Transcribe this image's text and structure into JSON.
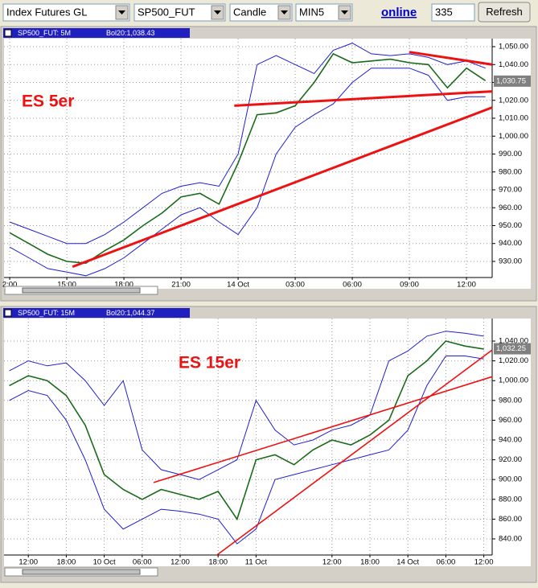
{
  "toolbar": {
    "selects": [
      "Index Futures GL",
      "SP500_FUT",
      "Candle",
      "MIN5"
    ],
    "status": "online",
    "count": "335",
    "button": "Refresh"
  },
  "chart_data": [
    {
      "type": "line",
      "title": "SP500_FUT: 5M",
      "subtitle": "Bol20:1,038.43",
      "annotation": "ES 5er",
      "last_price": {
        "value": 1030.75,
        "label": "1,030.75"
      },
      "x": [
        0,
        1,
        2,
        3,
        4,
        5,
        6,
        7,
        8,
        9,
        10,
        11,
        12,
        13,
        14,
        15,
        16,
        17,
        18,
        19,
        20,
        21,
        22,
        23,
        24,
        25
      ],
      "xlim": [
        -0.3,
        25.35
      ],
      "xticks": [
        {
          "value": 0,
          "label": "2:00"
        },
        {
          "value": 3,
          "label": "15:00"
        },
        {
          "value": 6,
          "label": "18:00"
        },
        {
          "value": 9,
          "label": "21:00"
        },
        {
          "value": 12,
          "label": "14 Oct"
        },
        {
          "value": 15,
          "label": "03:00"
        },
        {
          "value": 18,
          "label": "06:00"
        },
        {
          "value": 21,
          "label": "09:00"
        },
        {
          "value": 24,
          "label": "12:00"
        }
      ],
      "ylim": [
        921,
        1054.5
      ],
      "yticks": [
        {
          "value": 1050,
          "label": "1,050.00"
        },
        {
          "value": 1040,
          "label": "1,040.00"
        },
        {
          "value": 1030,
          "label": "1,030.00"
        },
        {
          "value": 1020,
          "label": "1,020.00"
        },
        {
          "value": 1010,
          "label": "1,010.00"
        },
        {
          "value": 1000,
          "label": "1,000.00"
        },
        {
          "value": 990,
          "label": "990.00"
        },
        {
          "value": 980,
          "label": "980.00"
        },
        {
          "value": 970,
          "label": "970.00"
        },
        {
          "value": 960,
          "label": "960.00"
        },
        {
          "value": 950,
          "label": "950.00"
        },
        {
          "value": 940,
          "label": "940.00"
        },
        {
          "value": 930,
          "label": "930.00"
        }
      ],
      "grid": true,
      "series": [
        {
          "color": "#1a6b1a",
          "values": [
            946,
            940,
            934,
            930,
            929,
            936,
            942,
            950,
            957,
            966,
            968,
            962,
            985,
            1012,
            1013,
            1017,
            1030,
            1046,
            1041,
            1042,
            1043,
            1041,
            1040,
            1027,
            1038,
            1031
          ]
        },
        {
          "color": "#1f1fd0",
          "values": [
            952,
            948,
            944,
            940,
            940,
            945,
            952,
            960,
            968,
            972,
            974,
            972,
            990,
            1040,
            1045,
            1040,
            1035,
            1048,
            1052,
            1046,
            1045,
            1046,
            1044,
            1040,
            1042,
            1038
          ]
        },
        {
          "color": "#1f1fd0",
          "values": [
            938,
            932,
            926,
            924,
            922,
            926,
            932,
            940,
            948,
            956,
            960,
            952,
            945,
            960,
            990,
            1005,
            1012,
            1018,
            1030,
            1038,
            1038,
            1038,
            1034,
            1020,
            1022,
            1022
          ]
        }
      ],
      "trendlines": [
        {
          "color": "#ee1111",
          "x": [
            3.3,
            25.35
          ],
          "y": [
            927,
            1016
          ]
        },
        {
          "color": "#ee1111",
          "x": [
            11.8,
            25.35
          ],
          "y": [
            1017,
            1025
          ]
        },
        {
          "color": "#ee1111",
          "x": [
            21.0,
            25.35
          ],
          "y": [
            1047,
            1040
          ]
        }
      ]
    },
    {
      "type": "line",
      "title": "SP500_FUT: 15M",
      "subtitle": "Bol20:1,044.37",
      "annotation": "ES 15er",
      "last_price": {
        "value": 1032.25,
        "label": "1,032.25"
      },
      "x": [
        -0.5,
        0,
        0.5,
        1,
        1.5,
        2,
        2.5,
        3,
        3.5,
        4,
        4.5,
        5,
        5.5,
        6,
        6.5,
        7,
        7.5,
        8,
        8.5,
        9,
        9.5,
        10,
        10.5,
        11,
        11.5,
        12
      ],
      "xlim": [
        -0.64,
        12.22
      ],
      "xticks": [
        {
          "value": 0,
          "label": "12:00"
        },
        {
          "value": 1,
          "label": "18:00"
        },
        {
          "value": 2,
          "label": "10 Oct"
        },
        {
          "value": 3,
          "label": "06:00"
        },
        {
          "value": 4,
          "label": "12:00"
        },
        {
          "value": 5,
          "label": "18:00"
        },
        {
          "value": 6,
          "label": "11 Oct"
        },
        {
          "value": 8,
          "label": "12:00"
        },
        {
          "value": 9,
          "label": "18:00"
        },
        {
          "value": 10,
          "label": "14 Oct"
        },
        {
          "value": 11,
          "label": "06:00"
        },
        {
          "value": 12,
          "label": "12:00"
        }
      ],
      "ylim": [
        823.7,
        1062.8
      ],
      "yticks": [
        {
          "value": 1040,
          "label": "1,040.00"
        },
        {
          "value": 1020,
          "label": "1,020.00"
        },
        {
          "value": 1000,
          "label": "1,000.00"
        },
        {
          "value": 980,
          "label": "980.00"
        },
        {
          "value": 960,
          "label": "960.00"
        },
        {
          "value": 940,
          "label": "940.00"
        },
        {
          "value": 920,
          "label": "920.00"
        },
        {
          "value": 900,
          "label": "900.00"
        },
        {
          "value": 880,
          "label": "880.00"
        },
        {
          "value": 860,
          "label": "860.00"
        },
        {
          "value": 840,
          "label": "840.00"
        }
      ],
      "grid": true,
      "series": [
        {
          "color": "#1a6b1a",
          "values": [
            995,
            1005,
            1000,
            985,
            955,
            905,
            890,
            880,
            890,
            885,
            880,
            888,
            860,
            920,
            925,
            915,
            930,
            940,
            935,
            945,
            960,
            1005,
            1020,
            1040,
            1035,
            1032
          ]
        },
        {
          "color": "#1f1fd0",
          "values": [
            1010,
            1020,
            1015,
            1018,
            1000,
            975,
            1000,
            930,
            910,
            905,
            900,
            910,
            920,
            980,
            950,
            935,
            940,
            950,
            955,
            965,
            1020,
            1030,
            1045,
            1050,
            1048,
            1045
          ]
        },
        {
          "color": "#1f1fd0",
          "values": [
            980,
            990,
            985,
            960,
            920,
            870,
            850,
            860,
            870,
            868,
            865,
            860,
            835,
            850,
            900,
            905,
            910,
            915,
            920,
            925,
            930,
            950,
            995,
            1025,
            1025,
            1022
          ]
        }
      ],
      "trendlines": [
        {
          "color": "#ee1111",
          "x": [
            3.3,
            12.22
          ],
          "y": [
            897,
            1004
          ]
        },
        {
          "color": "#ee1111",
          "x": [
            4.98,
            12.22
          ],
          "y": [
            824,
            1031
          ]
        }
      ]
    }
  ]
}
